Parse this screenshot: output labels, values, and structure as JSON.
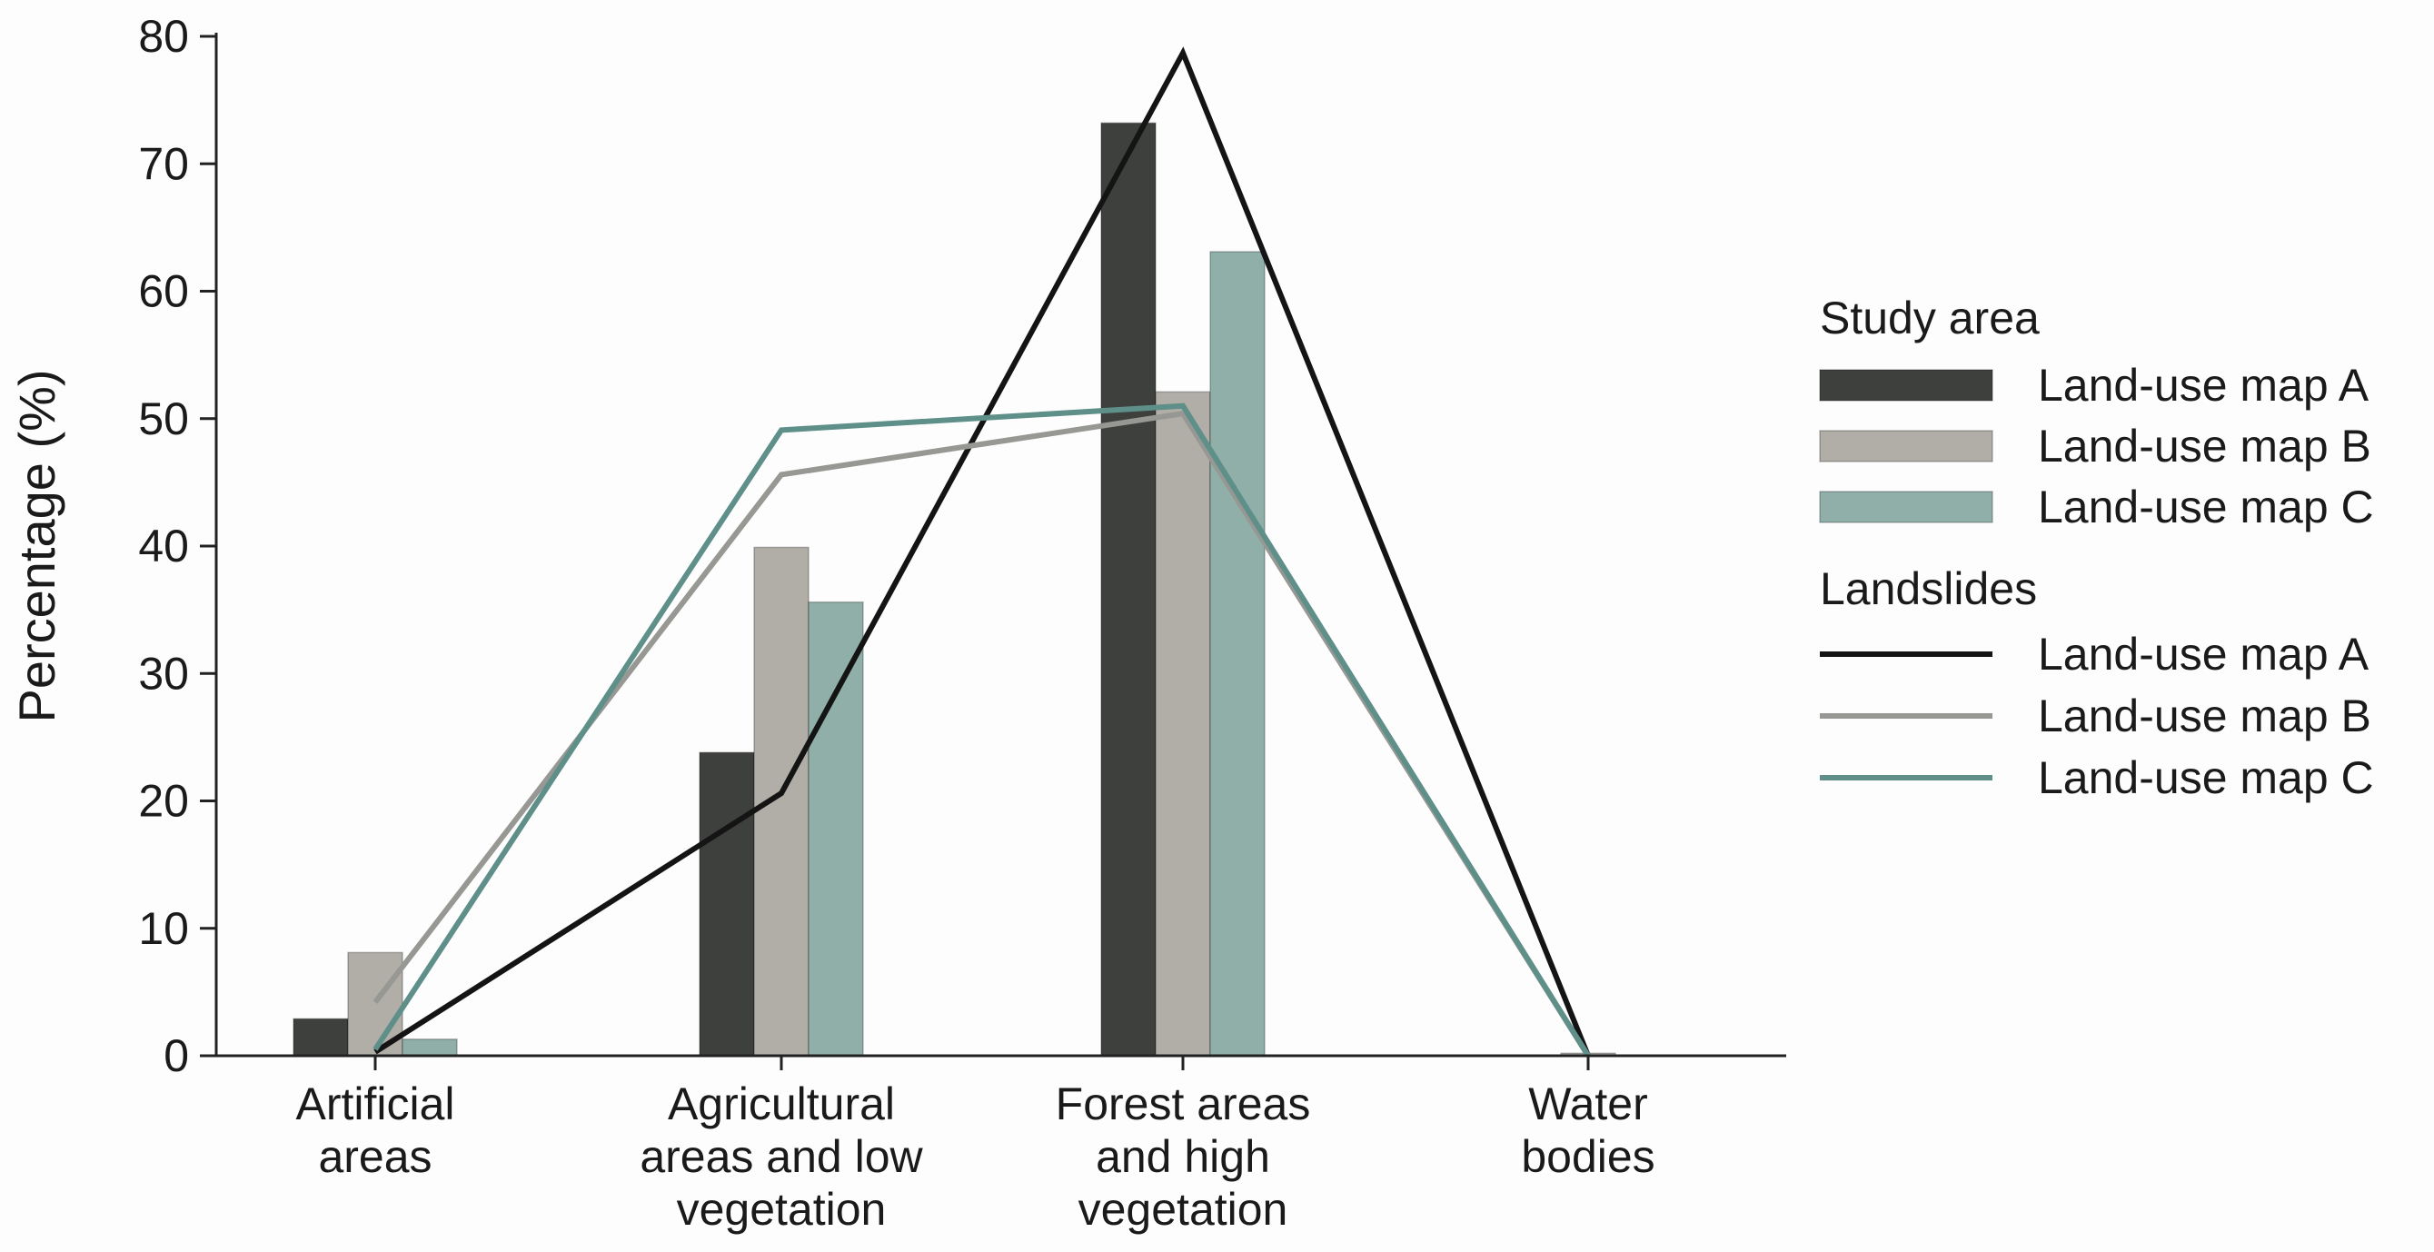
{
  "chart_data": {
    "type": "bar",
    "title": "",
    "xlabel": "",
    "ylabel": "Percentage (%)",
    "ylim": [
      0,
      80
    ],
    "yticks": [
      0,
      10,
      20,
      30,
      40,
      50,
      60,
      70,
      80
    ],
    "categories": [
      [
        "Artificial",
        "areas"
      ],
      [
        "Agricultural",
        "areas and low",
        "vegetation"
      ],
      [
        "Forest areas",
        "and high",
        "vegetation"
      ],
      [
        "Water",
        "bodies"
      ]
    ],
    "bar_series": [
      {
        "name": "Land-use map A",
        "group": "Study area",
        "color": "#3d403c",
        "values": [
          2.9,
          23.8,
          73.2,
          0
        ]
      },
      {
        "name": "Land-use map B",
        "group": "Study area",
        "color": "#b1ada7",
        "values": [
          8.1,
          39.9,
          52.1,
          0.2
        ]
      },
      {
        "name": "Land-use map C",
        "group": "Study area",
        "color": "#8fafa8",
        "values": [
          1.3,
          35.6,
          63.1,
          0
        ]
      }
    ],
    "line_series": [
      {
        "name": "Land-use map A",
        "group": "Landslides",
        "color": "#141414",
        "values": [
          0.3,
          20.6,
          78.7,
          0
        ]
      },
      {
        "name": "Land-use map B",
        "group": "Landslides",
        "color": "#979893",
        "values": [
          4.2,
          45.6,
          50.4,
          0
        ]
      },
      {
        "name": "Land-use map C",
        "group": "Landslides",
        "color": "#5e8f89",
        "values": [
          0.5,
          49.1,
          51.0,
          0
        ]
      }
    ],
    "legend": {
      "placement": "right",
      "groups": [
        {
          "title": "Study area",
          "kind": "bar",
          "entries": [
            "Land-use map A",
            "Land-use map B",
            "Land-use map C"
          ]
        },
        {
          "title": "Landslides",
          "kind": "line",
          "entries": [
            "Land-use map A",
            "Land-use map B",
            "Land-use map C"
          ]
        }
      ]
    }
  }
}
